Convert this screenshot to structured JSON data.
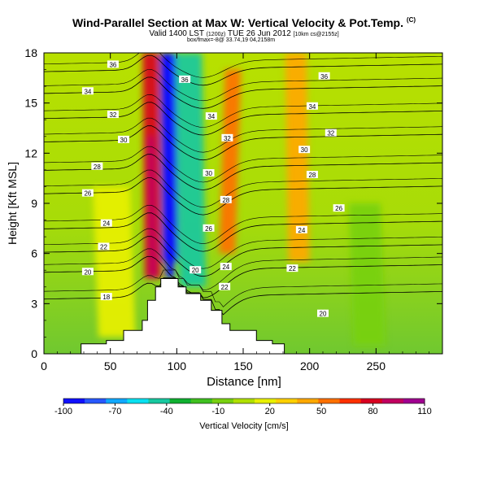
{
  "header": {
    "title": "Wind-Parallel Section at Max W: Vertical Velocity & Pot.Temp.",
    "title_mark": "(C)",
    "valid_prefix": "Valid 1400 LST",
    "valid_utc": "(1200z)",
    "valid_date": "TUE 26 Jun 2012",
    "valid_source": "[10km cs@2155z]",
    "location_line": "box/fmax=-8@ 33.74,19 04,2158m"
  },
  "chart_data": {
    "type": "heatmap",
    "title": "Vertical Velocity & Pot.Temp.",
    "xlabel": "Distance [nm]",
    "ylabel": "Height [Kft MSL]",
    "xlim": [
      0,
      300
    ],
    "ylim": [
      0,
      18
    ],
    "x_ticks": [
      0,
      50,
      100,
      150,
      200,
      250
    ],
    "y_ticks": [
      0,
      3,
      6,
      9,
      12,
      15,
      18
    ],
    "colorbar": {
      "label": "Vertical Velocity [cm/s]",
      "ticks": [
        -100,
        -70,
        -40,
        -10,
        20,
        50,
        80,
        110
      ],
      "colors": [
        "#1010ff",
        "#2858ff",
        "#10a8ff",
        "#08e0f0",
        "#18c8a0",
        "#10b030",
        "#40c020",
        "#78d010",
        "#b0e000",
        "#e8f000",
        "#ffd000",
        "#ffa800",
        "#ff7000",
        "#ff3000",
        "#d80020",
        "#c00060",
        "#a00090"
      ]
    },
    "theta_contours": [
      {
        "label": "18",
        "height": 3.5
      },
      {
        "label": "20",
        "height": 5.1
      },
      {
        "label": "22",
        "height": 6.3
      },
      {
        "label": "24",
        "height": 7.7
      },
      {
        "label": "26",
        "height": 9.8
      },
      {
        "label": "28",
        "height": 11.2
      },
      {
        "label": "30",
        "height": 12.9
      },
      {
        "label": "32",
        "height": 14.3
      },
      {
        "label": "34",
        "height": 15.8
      },
      {
        "label": "36",
        "height": 17.1
      }
    ],
    "contour_labels": [
      {
        "text": "36",
        "x": 52,
        "y": 17.3
      },
      {
        "text": "34",
        "x": 33,
        "y": 15.7
      },
      {
        "text": "32",
        "x": 52,
        "y": 14.3
      },
      {
        "text": "30",
        "x": 60,
        "y": 12.8
      },
      {
        "text": "28",
        "x": 40,
        "y": 11.2
      },
      {
        "text": "26",
        "x": 33,
        "y": 9.6
      },
      {
        "text": "24",
        "x": 47,
        "y": 7.8
      },
      {
        "text": "22",
        "x": 45,
        "y": 6.4
      },
      {
        "text": "20",
        "x": 33,
        "y": 4.9
      },
      {
        "text": "18",
        "x": 47,
        "y": 3.4
      },
      {
        "text": "36",
        "x": 106,
        "y": 16.4
      },
      {
        "text": "34",
        "x": 126,
        "y": 14.2
      },
      {
        "text": "32",
        "x": 138,
        "y": 12.9
      },
      {
        "text": "30",
        "x": 124,
        "y": 10.8
      },
      {
        "text": "28",
        "x": 137,
        "y": 9.2
      },
      {
        "text": "26",
        "x": 124,
        "y": 7.5
      },
      {
        "text": "24",
        "x": 137,
        "y": 5.2
      },
      {
        "text": "22",
        "x": 136,
        "y": 4.0
      },
      {
        "text": "20",
        "x": 114,
        "y": 5.0
      },
      {
        "text": "36",
        "x": 211,
        "y": 16.6
      },
      {
        "text": "34",
        "x": 202,
        "y": 14.8
      },
      {
        "text": "32",
        "x": 216,
        "y": 13.2
      },
      {
        "text": "30",
        "x": 196,
        "y": 12.2
      },
      {
        "text": "28",
        "x": 202,
        "y": 10.7
      },
      {
        "text": "26",
        "x": 222,
        "y": 8.7
      },
      {
        "text": "24",
        "x": 194,
        "y": 7.4
      },
      {
        "text": "22",
        "x": 187,
        "y": 5.1
      },
      {
        "text": "20",
        "x": 210,
        "y": 2.4
      }
    ],
    "terrain": [
      {
        "x": 0,
        "h": 0.0
      },
      {
        "x": 28,
        "h": 0.0
      },
      {
        "x": 28,
        "h": 0.6
      },
      {
        "x": 47,
        "h": 0.6
      },
      {
        "x": 47,
        "h": 0.8
      },
      {
        "x": 60,
        "h": 0.8
      },
      {
        "x": 60,
        "h": 1.4
      },
      {
        "x": 74,
        "h": 1.4
      },
      {
        "x": 74,
        "h": 2.0
      },
      {
        "x": 78,
        "h": 2.0
      },
      {
        "x": 78,
        "h": 3.2
      },
      {
        "x": 84,
        "h": 3.2
      },
      {
        "x": 84,
        "h": 4.0
      },
      {
        "x": 88,
        "h": 4.0
      },
      {
        "x": 88,
        "h": 4.5
      },
      {
        "x": 101,
        "h": 4.5
      },
      {
        "x": 101,
        "h": 4.0
      },
      {
        "x": 107,
        "h": 4.0
      },
      {
        "x": 107,
        "h": 3.6
      },
      {
        "x": 118,
        "h": 3.6
      },
      {
        "x": 118,
        "h": 3.2
      },
      {
        "x": 126,
        "h": 3.2
      },
      {
        "x": 126,
        "h": 2.6
      },
      {
        "x": 134,
        "h": 2.6
      },
      {
        "x": 134,
        "h": 1.8
      },
      {
        "x": 140,
        "h": 1.8
      },
      {
        "x": 140,
        "h": 1.4
      },
      {
        "x": 160,
        "h": 1.4
      },
      {
        "x": 160,
        "h": 0.8
      },
      {
        "x": 172,
        "h": 0.8
      },
      {
        "x": 172,
        "h": 0.6
      },
      {
        "x": 181,
        "h": 0.6
      },
      {
        "x": 181,
        "h": 0.0
      },
      {
        "x": 300,
        "h": 0.0
      }
    ],
    "vv_features": [
      {
        "x": 82,
        "y0": 4.5,
        "y1": 18,
        "value": 80,
        "width": 6
      },
      {
        "x": 95,
        "y0": 5.5,
        "y1": 18,
        "value": -90,
        "width": 6
      },
      {
        "x": 112,
        "y0": 4.0,
        "y1": 18,
        "value": -40,
        "width": 10
      },
      {
        "x": 138,
        "y0": 6.0,
        "y1": 17,
        "value": 50,
        "width": 6
      },
      {
        "x": 192,
        "y0": 5.5,
        "y1": 18,
        "value": 40,
        "width": 8
      },
      {
        "x": 245,
        "y0": 0.5,
        "y1": 9,
        "value": -10,
        "width": 12
      },
      {
        "x": 55,
        "y0": 1.0,
        "y1": 10,
        "value": 20,
        "width": 14
      }
    ]
  }
}
